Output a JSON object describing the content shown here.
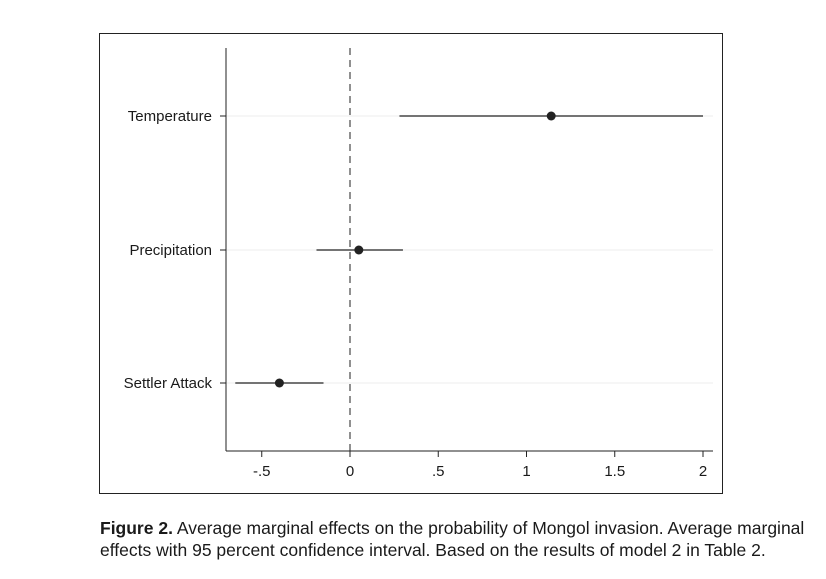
{
  "caption": {
    "label": "Figure 2.",
    "text": " Average marginal effects on the probability of Mongol invasion. Average marginal effects with 95 percent confidence interval. Based on the results of model 2 in Table 2."
  },
  "chart_data": {
    "type": "scatter",
    "subtype": "coefficient-plot",
    "title": "",
    "xlabel": "",
    "ylabel": "",
    "xlim": [
      -0.7,
      2.05
    ],
    "xticks": [
      -0.5,
      0,
      0.5,
      1,
      1.5,
      2
    ],
    "xtick_labels": [
      "-.5",
      "0",
      ".5",
      "1",
      "1.5",
      "2"
    ],
    "reference_line": {
      "x": 0,
      "style": "dashed"
    },
    "grid": "horizontal-light",
    "categories": [
      "Temperature",
      "Precipitation",
      "Settler Attack"
    ],
    "estimates": [
      1.14,
      0.05,
      -0.4
    ],
    "ci_low": [
      0.28,
      -0.19,
      -0.65
    ],
    "ci_high": [
      2.0,
      0.3,
      -0.15
    ],
    "colors": {
      "marker": "#222222",
      "line": "#222222",
      "grid": "#eeeeee"
    }
  }
}
